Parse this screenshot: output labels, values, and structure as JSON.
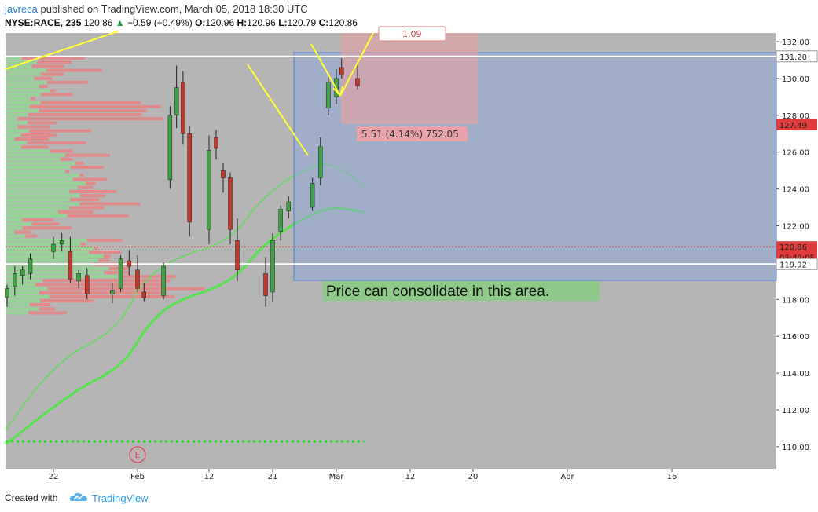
{
  "header": {
    "author": "javreca",
    "published_text": "published on TradingView.com, March 05, 2018 18:30 UTC",
    "symbol": "NYSE:RACE, 235",
    "price": "120.86",
    "change": "+0.59 (+0.49%)",
    "o_label": "O:",
    "o_value": "120.96",
    "h_label": "H:",
    "h_value": "120.96",
    "l_label": "L:",
    "l_value": "120.79",
    "c_label": "C:",
    "c_value": "120.86"
  },
  "footer": {
    "created_with": "Created with",
    "brand": "TradingView"
  },
  "colors": {
    "background": "#b5b5b5",
    "candle_up": "#3fa045",
    "candle_down": "#c0392b",
    "volume_profile_up": "#90d890",
    "volume_profile_down": "#e78482",
    "ma_line": "#55e34d",
    "annotation_arrow": "#ffff33",
    "range_box": "#4f7fd8",
    "price_label": "#e03a3a"
  },
  "chart_data": {
    "type": "candlestick",
    "y_axis": {
      "min": 109,
      "max": 132.6,
      "ticks": [
        "132.00",
        "130.00",
        "128.00",
        "126.00",
        "124.00",
        "122.00",
        "120.00",
        "118.00",
        "116.00",
        "114.00",
        "112.00",
        "110.00"
      ]
    },
    "x_axis": {
      "unit": "date (2018)",
      "ticks": [
        {
          "label": "22",
          "date": "2018-01-22"
        },
        {
          "label": "Feb",
          "date": "2018-02-01"
        },
        {
          "label": "12",
          "date": "2018-02-12"
        },
        {
          "label": "21",
          "date": "2018-02-21"
        },
        {
          "label": "Mar",
          "date": "2018-03-01"
        },
        {
          "label": "12",
          "date": "2018-03-12"
        },
        {
          "label": "20",
          "date": "2018-03-20"
        },
        {
          "label": "Apr",
          "date": "2018-04-02"
        },
        {
          "label": "16",
          "date": "2018-04-16"
        }
      ]
    },
    "price_labels": [
      {
        "value": 131.2,
        "text": "131.20",
        "style": "light"
      },
      {
        "value": 127.49,
        "text": "127.49",
        "style": "red"
      },
      {
        "value": 120.86,
        "text": "120.86",
        "style": "red"
      },
      {
        "value": 120.3,
        "text": "03:49:05",
        "style": "red"
      },
      {
        "value": 119.92,
        "text": "119.92",
        "style": "light"
      }
    ],
    "horizontal_lines": [
      {
        "value": 131.2,
        "color": "#ffffff"
      },
      {
        "value": 119.92,
        "color": "#ffffff"
      },
      {
        "value": 120.86,
        "color": "#e03a3a",
        "dashed": true
      }
    ],
    "candles": [
      {
        "date": "2018-01-16",
        "o": 118.1,
        "h": 118.8,
        "l": 117.6,
        "c": 118.6
      },
      {
        "date": "2018-01-17",
        "o": 118.7,
        "h": 119.8,
        "l": 118.2,
        "c": 119.4
      },
      {
        "date": "2018-01-18",
        "o": 119.3,
        "h": 119.8,
        "l": 118.8,
        "c": 119.6
      },
      {
        "date": "2018-01-19",
        "o": 119.4,
        "h": 120.5,
        "l": 119.1,
        "c": 120.2
      },
      {
        "date": "2018-01-22",
        "o": 120.6,
        "h": 121.4,
        "l": 120.2,
        "c": 121.0
      },
      {
        "date": "2018-01-23",
        "o": 121.0,
        "h": 121.6,
        "l": 120.6,
        "c": 121.2
      },
      {
        "date": "2018-01-24",
        "o": 120.6,
        "h": 121.4,
        "l": 118.9,
        "c": 119.1
      },
      {
        "date": "2018-01-25",
        "o": 119.0,
        "h": 119.6,
        "l": 118.6,
        "c": 119.4
      },
      {
        "date": "2018-01-26",
        "o": 119.3,
        "h": 119.7,
        "l": 118.0,
        "c": 118.3
      },
      {
        "date": "2018-01-29",
        "o": 118.3,
        "h": 118.9,
        "l": 117.8,
        "c": 118.5
      },
      {
        "date": "2018-01-30",
        "o": 118.6,
        "h": 120.4,
        "l": 118.4,
        "c": 120.2
      },
      {
        "date": "2018-01-31",
        "o": 120.1,
        "h": 120.7,
        "l": 119.3,
        "c": 119.8
      },
      {
        "date": "2018-02-01",
        "o": 119.6,
        "h": 120.4,
        "l": 118.4,
        "c": 118.6
      },
      {
        "date": "2018-02-02",
        "o": 118.4,
        "h": 118.9,
        "l": 117.9,
        "c": 118.1
      },
      {
        "date": "2018-02-05",
        "o": 118.2,
        "h": 120.0,
        "l": 118.0,
        "c": 119.8
      },
      {
        "date": "2018-02-06",
        "o": 124.5,
        "h": 128.5,
        "l": 124.0,
        "c": 128.0
      },
      {
        "date": "2018-02-07",
        "o": 128.0,
        "h": 130.7,
        "l": 127.3,
        "c": 129.5
      },
      {
        "date": "2018-02-08",
        "o": 129.8,
        "h": 130.4,
        "l": 126.4,
        "c": 127.0
      },
      {
        "date": "2018-02-09",
        "o": 127.0,
        "h": 127.4,
        "l": 121.4,
        "c": 122.2
      },
      {
        "date": "2018-02-12",
        "o": 121.8,
        "h": 126.9,
        "l": 121.0,
        "c": 126.1
      },
      {
        "date": "2018-02-13",
        "o": 126.8,
        "h": 127.2,
        "l": 125.6,
        "c": 126.2
      },
      {
        "date": "2018-02-14",
        "o": 125.0,
        "h": 125.4,
        "l": 123.8,
        "c": 124.6
      },
      {
        "date": "2018-02-15",
        "o": 124.6,
        "h": 124.9,
        "l": 121.0,
        "c": 121.8
      },
      {
        "date": "2018-02-16",
        "o": 121.2,
        "h": 122.4,
        "l": 119.0,
        "c": 119.6
      },
      {
        "date": "2018-02-20",
        "o": 119.4,
        "h": 120.3,
        "l": 117.6,
        "c": 118.2
      },
      {
        "date": "2018-02-21",
        "o": 118.4,
        "h": 121.6,
        "l": 117.9,
        "c": 121.2
      },
      {
        "date": "2018-02-22",
        "o": 121.7,
        "h": 123.1,
        "l": 121.2,
        "c": 122.9
      },
      {
        "date": "2018-02-23",
        "o": 122.8,
        "h": 123.6,
        "l": 122.4,
        "c": 123.3
      },
      {
        "date": "2018-02-26",
        "o": 123.0,
        "h": 124.6,
        "l": 122.8,
        "c": 124.3
      },
      {
        "date": "2018-02-27",
        "o": 124.6,
        "h": 126.8,
        "l": 124.2,
        "c": 126.3
      },
      {
        "date": "2018-02-28",
        "o": 128.4,
        "h": 130.1,
        "l": 128.0,
        "c": 129.8
      },
      {
        "date": "2018-03-01",
        "o": 129.0,
        "h": 130.5,
        "l": 128.6,
        "c": 130.0
      },
      {
        "date": "2018-03-02",
        "o": 130.6,
        "h": 131.1,
        "l": 130.0,
        "c": 130.2
      },
      {
        "date": "2018-03-05",
        "o": 130.0,
        "h": 130.8,
        "l": 129.4,
        "c": 129.6
      }
    ],
    "annotations": [
      {
        "type": "text",
        "text": "Price  can consolidate in this area.",
        "background": "#8fc98a"
      },
      {
        "type": "range_label",
        "text": "5.51 (4.14%) 752.05",
        "background": "#e9a3a6"
      },
      {
        "type": "partial_label",
        "text": "1.09"
      },
      {
        "type": "event_marker",
        "text": "E",
        "date": "2018-02-01"
      }
    ]
  }
}
